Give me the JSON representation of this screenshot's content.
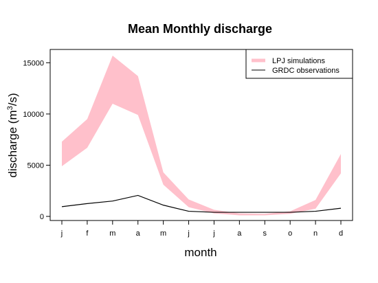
{
  "chart_data": {
    "type": "area",
    "title": "Mean Monthly discharge",
    "xlabel": "month",
    "ylabel_prefix": "discharge (m",
    "ylabel_sup": "3",
    "ylabel_suffix": "/s)",
    "categories": [
      "j",
      "f",
      "m",
      "a",
      "m",
      "j",
      "j",
      "a",
      "s",
      "o",
      "n",
      "d"
    ],
    "yticks": [
      0,
      5000,
      10000,
      15000
    ],
    "ytick_labels": [
      "0",
      "5000",
      "10000",
      "15000"
    ],
    "ylim": [
      -400,
      16300
    ],
    "grid": false,
    "legend_position": "top-right",
    "series": [
      {
        "name": "LPJ simulations",
        "kind": "band",
        "color": "#ffc0cb",
        "lower": [
          4900,
          6700,
          11000,
          9900,
          3100,
          900,
          300,
          100,
          100,
          250,
          750,
          4200
        ],
        "upper": [
          7300,
          9500,
          15700,
          13700,
          4300,
          1650,
          650,
          300,
          250,
          500,
          1600,
          6100
        ]
      },
      {
        "name": "GRDC observations",
        "kind": "line",
        "color": "#000000",
        "values": [
          950,
          1250,
          1500,
          2050,
          1100,
          500,
          400,
          400,
          400,
          400,
          500,
          800
        ]
      }
    ]
  }
}
